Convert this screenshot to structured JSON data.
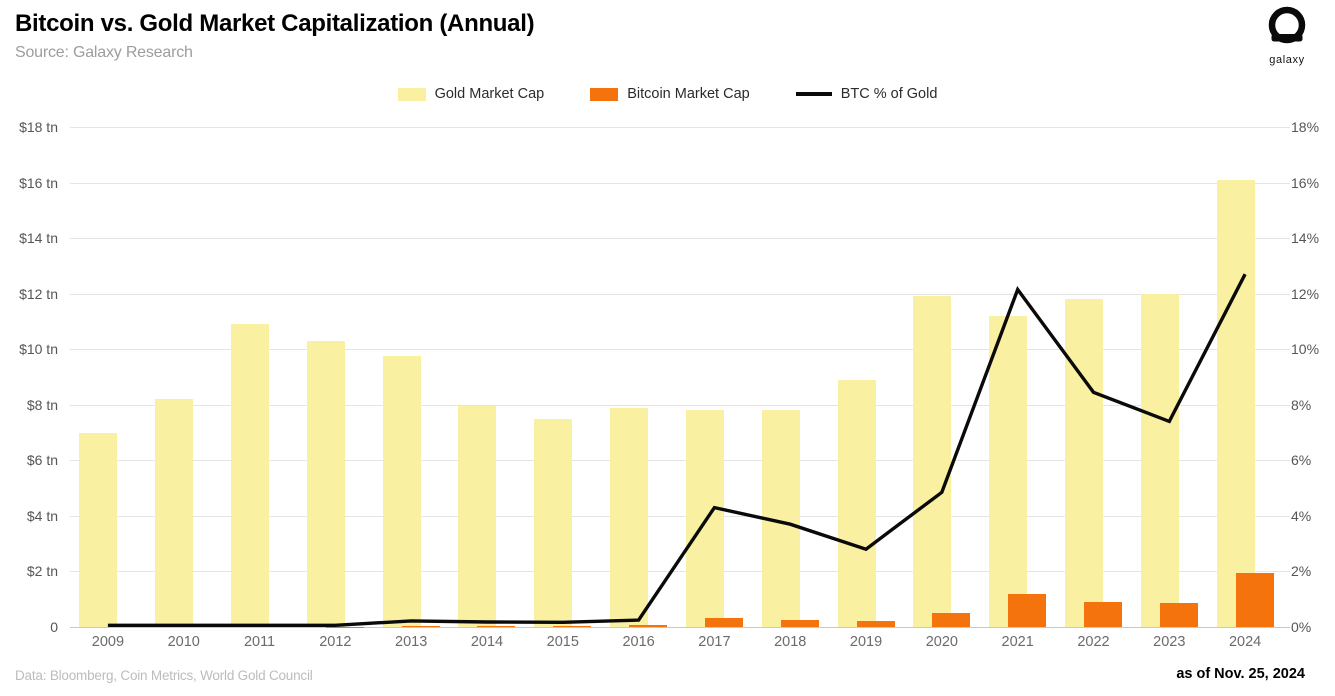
{
  "header": {
    "title": "Bitcoin vs. Gold Market Capitalization (Annual)",
    "subtitle": "Source: Galaxy Research",
    "logo_label": "galaxy"
  },
  "legend": {
    "items": [
      {
        "label": "Gold Market Cap",
        "color": "#FAF0A1",
        "marker": "swatch"
      },
      {
        "label": "Bitcoin Market Cap",
        "color": "#F5730D",
        "marker": "swatch"
      },
      {
        "label": "BTC % of Gold",
        "color": "#0a0a0a",
        "marker": "line"
      }
    ]
  },
  "chart_data": {
    "type": "bar",
    "subtype": "overlapped-bars-with-line",
    "title": "Bitcoin vs. Gold Market Capitalization (Annual)",
    "categories": [
      "2009",
      "2010",
      "2011",
      "2012",
      "2013",
      "2014",
      "2015",
      "2016",
      "2017",
      "2018",
      "2019",
      "2020",
      "2021",
      "2022",
      "2023",
      "2024"
    ],
    "series": [
      {
        "name": "Gold Market Cap",
        "type": "bar",
        "axis": "left",
        "unit": "$ tn",
        "color": "#FAF0A1",
        "values": [
          7.0,
          8.2,
          10.9,
          10.3,
          9.75,
          7.95,
          7.5,
          7.9,
          7.8,
          7.8,
          8.9,
          11.9,
          11.2,
          11.8,
          12.0,
          16.1
        ]
      },
      {
        "name": "Bitcoin Market Cap",
        "type": "bar",
        "axis": "left",
        "unit": "$ tn",
        "color": "#F5730D",
        "values": [
          0,
          0,
          0,
          0.01,
          0.05,
          0.04,
          0.04,
          0.06,
          0.31,
          0.26,
          0.2,
          0.5,
          1.2,
          0.9,
          0.85,
          1.93
        ]
      },
      {
        "name": "BTC % of Gold",
        "type": "line",
        "axis": "right",
        "unit": "%",
        "color": "#0a0a0a",
        "values": [
          0.0,
          0.01,
          0.02,
          0.06,
          0.22,
          0.18,
          0.17,
          0.25,
          4.3,
          3.7,
          2.8,
          4.85,
          12.15,
          8.45,
          7.4,
          12.7
        ]
      }
    ],
    "left_axis": {
      "min": 0,
      "max": 18,
      "tick_step": 2,
      "tick_labels_top_to_bottom": [
        "$18 tn",
        "$16 tn",
        "$14 tn",
        "$12 tn",
        "$10 tn",
        "$8 tn",
        "$6 tn",
        "$4 tn",
        "$2 tn",
        "0"
      ]
    },
    "right_axis": {
      "min": 0,
      "max": 18,
      "tick_step": 2,
      "tick_labels_top_to_bottom": [
        "18%",
        "16%",
        "14%",
        "12%",
        "10%",
        "8%",
        "6%",
        "4%",
        "2%",
        "0%"
      ]
    },
    "grid": "horizontal",
    "legend_position": "top-center",
    "colors": {
      "gold_bar": "#FAF0A1",
      "bitcoin_bar": "#F5730D",
      "line": "#0a0a0a",
      "gridline": "#e4e4e4",
      "axis_line": "#c9c9c9",
      "tick_text": "#565656",
      "x_tick_text": "#6b6b6b"
    }
  },
  "footer": {
    "left": "Data: Bloomberg, Coin Metrics, World Gold Council",
    "right": "as of Nov. 25, 2024"
  }
}
